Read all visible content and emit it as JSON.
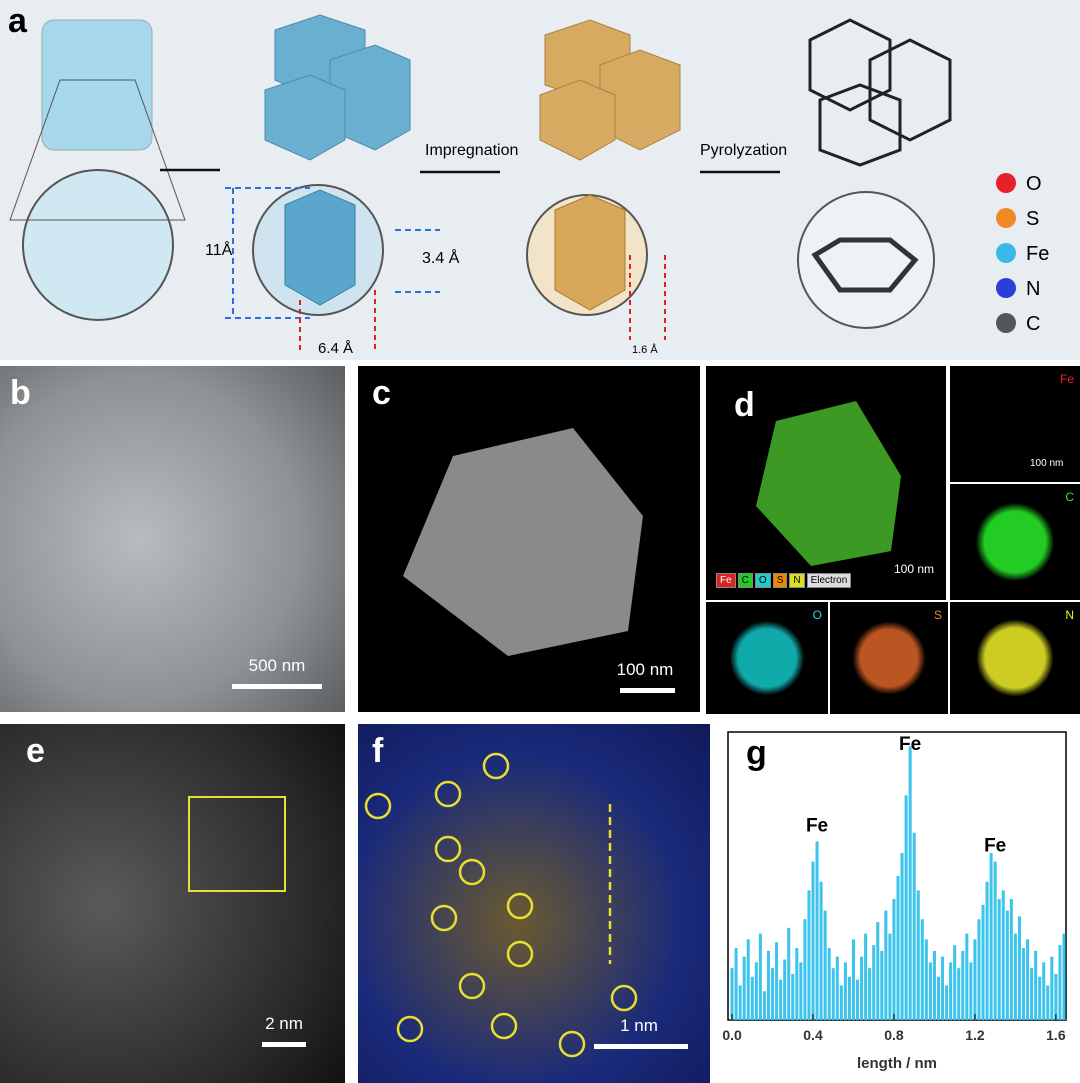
{
  "panel_a": {
    "label": "a",
    "arrow_1": "Impregnation",
    "arrow_2": "Pyrolyzation",
    "dim_11": "11Å",
    "dim_34": "3.4 Å",
    "dim_64": "6.4 Å",
    "dim_16": "1.6 Å",
    "legend": [
      {
        "name": "O",
        "color": "#e8202a"
      },
      {
        "name": "S",
        "color": "#f08a24"
      },
      {
        "name": "Fe",
        "color": "#3ab8e8"
      },
      {
        "name": "N",
        "color": "#2a3fd8"
      },
      {
        "name": "C",
        "color": "#555555"
      }
    ]
  },
  "panel_b": {
    "label": "b",
    "scale": "500 nm"
  },
  "panel_c": {
    "label": "c",
    "scale": "100 nm"
  },
  "panel_d": {
    "label": "d",
    "scale": "100 nm",
    "fe_scale": "100 nm",
    "maps": [
      "Fe",
      "C",
      "O",
      "S",
      "N"
    ],
    "chips": [
      "Fe",
      "C",
      "O",
      "S",
      "N",
      "Electron"
    ]
  },
  "panel_e": {
    "label": "e",
    "scale": "2 nm"
  },
  "panel_f": {
    "label": "f",
    "scale": "1 nm"
  },
  "chart_data": {
    "type": "bar",
    "label": "g",
    "xlabel": "length / nm",
    "color": "#3cc4ec",
    "x": [
      0,
      0.02,
      0.04,
      0.06,
      0.08,
      0.1,
      0.12,
      0.14,
      0.16,
      0.18,
      0.2,
      0.22,
      0.24,
      0.26,
      0.28,
      0.3,
      0.32,
      0.34,
      0.36,
      0.38,
      0.4,
      0.42,
      0.44,
      0.46,
      0.48,
      0.5,
      0.52,
      0.54,
      0.56,
      0.58,
      0.6,
      0.62,
      0.64,
      0.66,
      0.68,
      0.7,
      0.72,
      0.74,
      0.76,
      0.78,
      0.8,
      0.82,
      0.84,
      0.86,
      0.88,
      0.9,
      0.92,
      0.94,
      0.96,
      0.98,
      1,
      1.02,
      1.04,
      1.06,
      1.08,
      1.1,
      1.12,
      1.14,
      1.16,
      1.18,
      1.2,
      1.22,
      1.24,
      1.26,
      1.28,
      1.3,
      1.32,
      1.34,
      1.36,
      1.38,
      1.4,
      1.42,
      1.44,
      1.46,
      1.48,
      1.5,
      1.52,
      1.54,
      1.56,
      1.58,
      1.6,
      1.62,
      1.64
    ],
    "values": [
      18,
      25,
      12,
      22,
      28,
      15,
      20,
      30,
      10,
      24,
      18,
      27,
      14,
      21,
      32,
      16,
      25,
      20,
      35,
      45,
      55,
      62,
      48,
      38,
      25,
      18,
      22,
      12,
      20,
      15,
      28,
      14,
      22,
      30,
      18,
      26,
      34,
      24,
      38,
      30,
      42,
      50,
      58,
      78,
      95,
      65,
      45,
      35,
      28,
      20,
      24,
      15,
      22,
      12,
      20,
      26,
      18,
      24,
      30,
      20,
      28,
      35,
      40,
      48,
      58,
      55,
      42,
      45,
      38,
      42,
      30,
      36,
      25,
      28,
      18,
      24,
      15,
      20,
      12,
      22,
      16,
      26,
      30
    ],
    "xlim": [
      -0.02,
      1.65
    ],
    "ylim": [
      0,
      100
    ],
    "xticks": [
      {
        "value": 0,
        "label": "0.0"
      },
      0.4,
      0.8,
      1.2,
      1.6
    ],
    "annotations": [
      {
        "text": "Fe",
        "x": 0.42
      },
      {
        "text": "Fe",
        "x": 0.88
      },
      {
        "text": "Fe",
        "x": 1.3
      }
    ]
  }
}
